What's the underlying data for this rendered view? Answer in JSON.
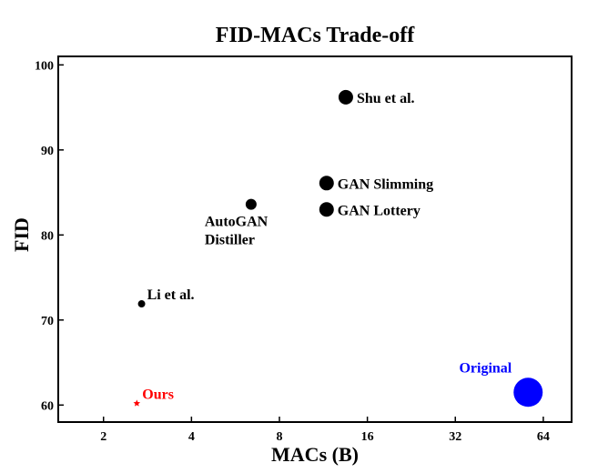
{
  "chart_data": {
    "type": "scatter",
    "title": "FID-MACs Trade-off",
    "xlabel": "MACs (B)",
    "ylabel": "FID",
    "x_scale": "log2",
    "xlim": [
      1.4,
      80
    ],
    "ylim": [
      58,
      101
    ],
    "x_ticks": [
      {
        "value": 2,
        "label": "2"
      },
      {
        "value": 4,
        "label": "4"
      },
      {
        "value": 8,
        "label": "8"
      },
      {
        "value": 16,
        "label": "16"
      },
      {
        "value": 32,
        "label": "32"
      },
      {
        "value": 64,
        "label": "64"
      }
    ],
    "y_ticks": [
      {
        "value": 60,
        "label": "60"
      },
      {
        "value": 70,
        "label": "70"
      },
      {
        "value": 80,
        "label": "80"
      },
      {
        "value": 90,
        "label": "90"
      },
      {
        "value": 100,
        "label": "100"
      }
    ],
    "grid": false,
    "points": [
      {
        "label": "Shu et al.",
        "x": 13.5,
        "y": 96.2,
        "marker": "circle",
        "size": "medium",
        "color": "#000000",
        "label_pos": "right"
      },
      {
        "label": "GAN Slimming",
        "x": 11.6,
        "y": 86.1,
        "marker": "circle",
        "size": "medium",
        "color": "#000000",
        "label_pos": "right"
      },
      {
        "label": "GAN Lottery",
        "x": 11.6,
        "y": 83.0,
        "marker": "circle",
        "size": "medium",
        "color": "#000000",
        "label_pos": "right"
      },
      {
        "label": "AutoGAN Distiller",
        "label_lines": [
          "AutoGAN",
          "Distiller"
        ],
        "x": 6.4,
        "y": 83.6,
        "marker": "circle",
        "size": "small",
        "color": "#000000",
        "label_pos": "below-left"
      },
      {
        "label": "Li et al.",
        "x": 2.7,
        "y": 71.9,
        "marker": "circle",
        "size": "tiny",
        "color": "#000000",
        "label_pos": "upper-right"
      },
      {
        "label": "Ours",
        "x": 2.6,
        "y": 60.2,
        "marker": "star",
        "size": "tiny",
        "color": "#ff0000",
        "label_pos": "upper-right"
      },
      {
        "label": "Original",
        "x": 56.8,
        "y": 61.5,
        "marker": "circle",
        "size": "large",
        "color": "#0000ff",
        "label_pos": "upper-left"
      }
    ]
  }
}
